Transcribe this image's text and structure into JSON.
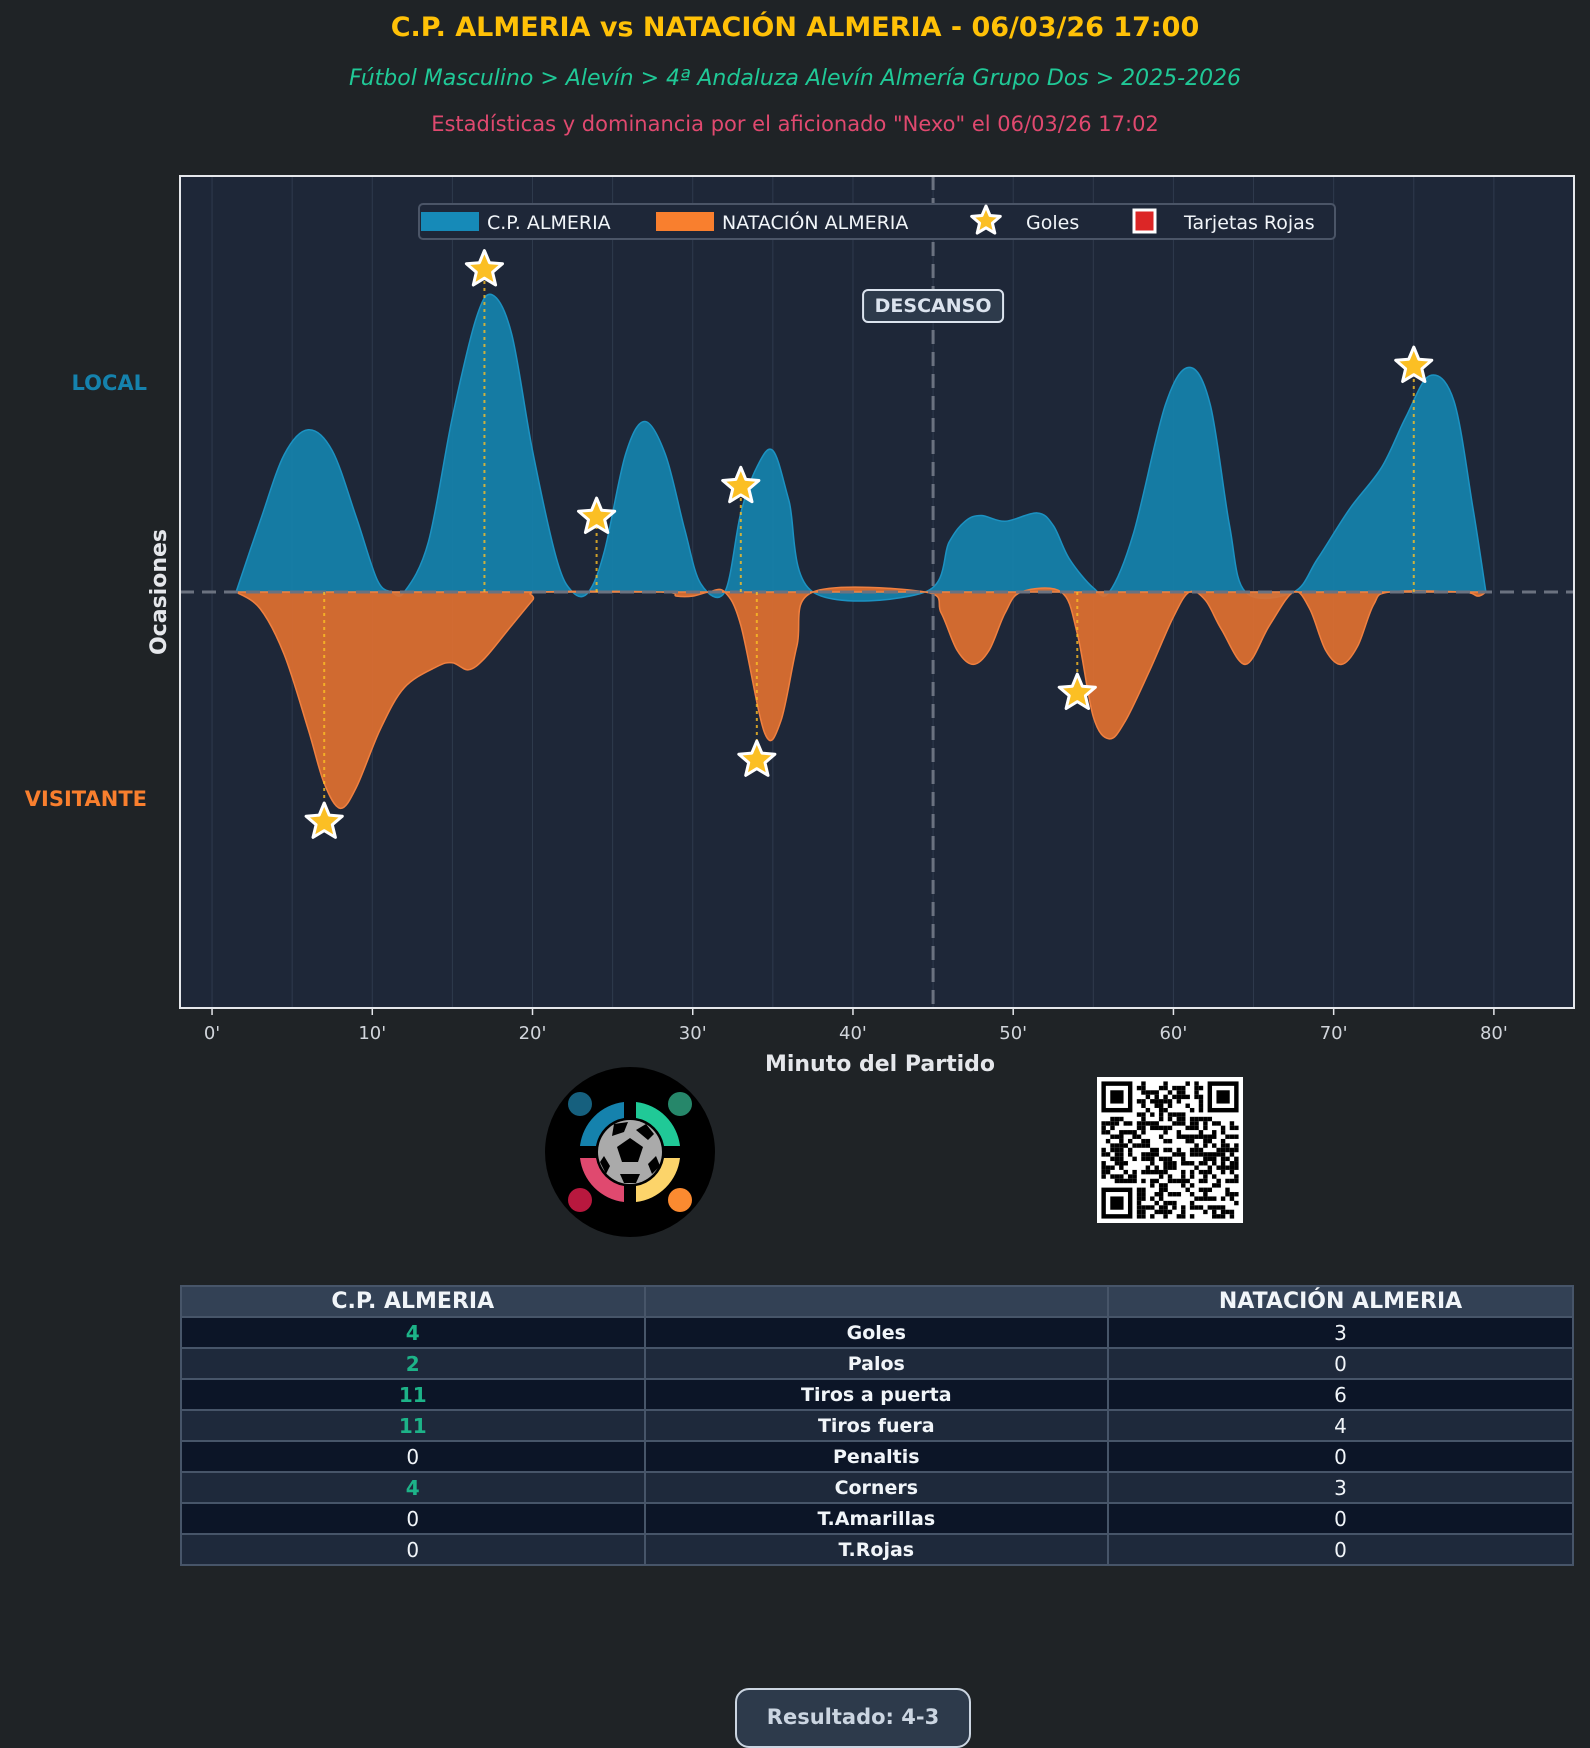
{
  "header": {
    "title": "C.P. ALMERIA vs NATACIÓN ALMERIA - 06/03/26 17:00",
    "subtitle": "Fútbol Masculino > Alevín > 4ª Andaluza Alevín Almería Grupo Dos > 2025-2026",
    "credit": "Estadísticas y dominancia por el aficionado \"Nexo\" el 06/03/26 17:02"
  },
  "colors": {
    "background": "#1f2326",
    "plot_background": "#1e2738",
    "home": "#1582ad",
    "away": "#e07030",
    "goal_star": "#fbbf24",
    "red_card": "#dc2626",
    "title": "#ffc107",
    "subtitle": "#20c997",
    "credit": "#e0496f",
    "highlight": "#1db388"
  },
  "chart_data": {
    "type": "area",
    "xlabel": "Minuto del Partido",
    "ylabel": "Ocasiones",
    "y_side_labels": {
      "top": "LOCAL",
      "bottom": "VISITANTE"
    },
    "xlim": [
      -2,
      85
    ],
    "ylim": [
      -1,
      1
    ],
    "xticks": [
      0,
      10,
      20,
      30,
      40,
      50,
      60,
      70,
      80
    ],
    "xtick_labels": [
      "0'",
      "10'",
      "20'",
      "30'",
      "40'",
      "50'",
      "60'",
      "70'",
      "80'"
    ],
    "grid": true,
    "legend_placement": "top-center",
    "legend": [
      "C.P. ALMERIA",
      "NATACIÓN ALMERIA",
      "Goles",
      "Tarjetas Rojas"
    ],
    "halftime": {
      "minute": 45,
      "label": "DESCANSO"
    },
    "series": [
      {
        "name": "C.P. ALMERIA",
        "x": [
          1.5,
          3,
          4.5,
          6,
          7.5,
          9,
          10.3,
          11.2,
          12,
          13.5,
          15,
          16.5,
          17.5,
          18.7,
          20,
          21.5,
          22.5,
          23.5,
          24.5,
          25.8,
          27,
          28.3,
          29.5,
          30.5,
          32,
          33,
          34,
          35,
          36,
          37.5,
          44.5,
          46,
          47,
          48,
          49.5,
          51.5,
          52.5,
          53.5,
          55,
          56,
          57.5,
          59.5,
          61,
          62.3,
          63.5,
          64.5,
          67.5,
          69,
          71,
          73,
          74.5,
          76,
          77.5,
          78.7,
          79.5
        ],
        "y": [
          0,
          0.17,
          0.33,
          0.39,
          0.34,
          0.18,
          0.03,
          0,
          0,
          0.12,
          0.42,
          0.66,
          0.714,
          0.62,
          0.34,
          0.08,
          0,
          0,
          0.1,
          0.33,
          0.41,
          0.33,
          0.15,
          0.02,
          0,
          0.19,
          0.3,
          0.34,
          0.22,
          0,
          0,
          0.12,
          0.17,
          0.184,
          0.17,
          0.19,
          0.16,
          0.08,
          0.01,
          0,
          0.14,
          0.45,
          0.54,
          0.45,
          0.16,
          0,
          0,
          0.08,
          0.2,
          0.3,
          0.42,
          0.52,
          0.46,
          0.2,
          0
        ]
      },
      {
        "name": "NATACIÓN ALMERIA",
        "x": [
          1.5,
          3,
          4.5,
          6,
          7,
          8,
          9,
          10.5,
          12,
          14,
          15,
          16,
          17,
          18.5,
          20,
          20.5,
          28,
          29,
          30,
          31,
          32,
          33,
          34.5,
          35.5,
          36.5,
          37.5,
          44.5,
          45.5,
          46.5,
          47.5,
          48.5,
          49.5,
          50.5,
          53,
          54,
          55,
          56,
          57,
          58.5,
          60,
          61,
          62,
          63,
          64.5,
          66,
          67.5,
          68.5,
          69.5,
          70.5,
          71.5,
          72.5,
          73.5,
          78,
          79,
          79.5
        ],
        "y": [
          0,
          -0.04,
          -0.15,
          -0.33,
          -0.46,
          -0.52,
          -0.47,
          -0.33,
          -0.23,
          -0.18,
          -0.17,
          -0.187,
          -0.16,
          -0.09,
          -0.02,
          0,
          0,
          -0.01,
          -0.01,
          0,
          0,
          -0.08,
          -0.34,
          -0.31,
          -0.13,
          0,
          0,
          -0.05,
          -0.14,
          -0.174,
          -0.14,
          -0.05,
          0,
          0,
          -0.1,
          -0.3,
          -0.353,
          -0.31,
          -0.19,
          -0.06,
          0,
          -0.02,
          -0.09,
          -0.174,
          -0.08,
          0,
          -0.04,
          -0.14,
          -0.174,
          -0.13,
          -0.03,
          0,
          0,
          -0.01,
          0
        ]
      }
    ],
    "goals": [
      {
        "team": "C.P. ALMERIA",
        "minute": 17,
        "y": 0.775
      },
      {
        "team": "C.P. ALMERIA",
        "minute": 24,
        "y": 0.18
      },
      {
        "team": "C.P. ALMERIA",
        "minute": 33,
        "y": 0.254
      },
      {
        "team": "C.P. ALMERIA",
        "minute": 75,
        "y": 0.543
      },
      {
        "team": "NATACIÓN ALMERIA",
        "minute": 7,
        "y": -0.553
      },
      {
        "team": "NATACIÓN ALMERIA",
        "minute": 34,
        "y": -0.404
      },
      {
        "team": "NATACIÓN ALMERIA",
        "minute": 54,
        "y": -0.243
      }
    ],
    "red_cards": []
  },
  "images": {
    "logo": "soccer-ball-community-logo",
    "qr": "qr-code"
  },
  "stats": {
    "home_team": "C.P. ALMERIA",
    "away_team": "NATACIÓN ALMERIA",
    "rows": [
      {
        "label": "Goles",
        "home": "4",
        "away": "3"
      },
      {
        "label": "Palos",
        "home": "2",
        "away": "0"
      },
      {
        "label": "Tiros a puerta",
        "home": "11",
        "away": "6"
      },
      {
        "label": "Tiros fuera",
        "home": "11",
        "away": "4"
      },
      {
        "label": "Penaltis",
        "home": "0",
        "away": "0"
      },
      {
        "label": "Corners",
        "home": "4",
        "away": "3"
      },
      {
        "label": "T.Amarillas",
        "home": "0",
        "away": "0"
      },
      {
        "label": "T.Rojas",
        "home": "0",
        "away": "0"
      }
    ]
  },
  "result": "Resultado: 4-3"
}
